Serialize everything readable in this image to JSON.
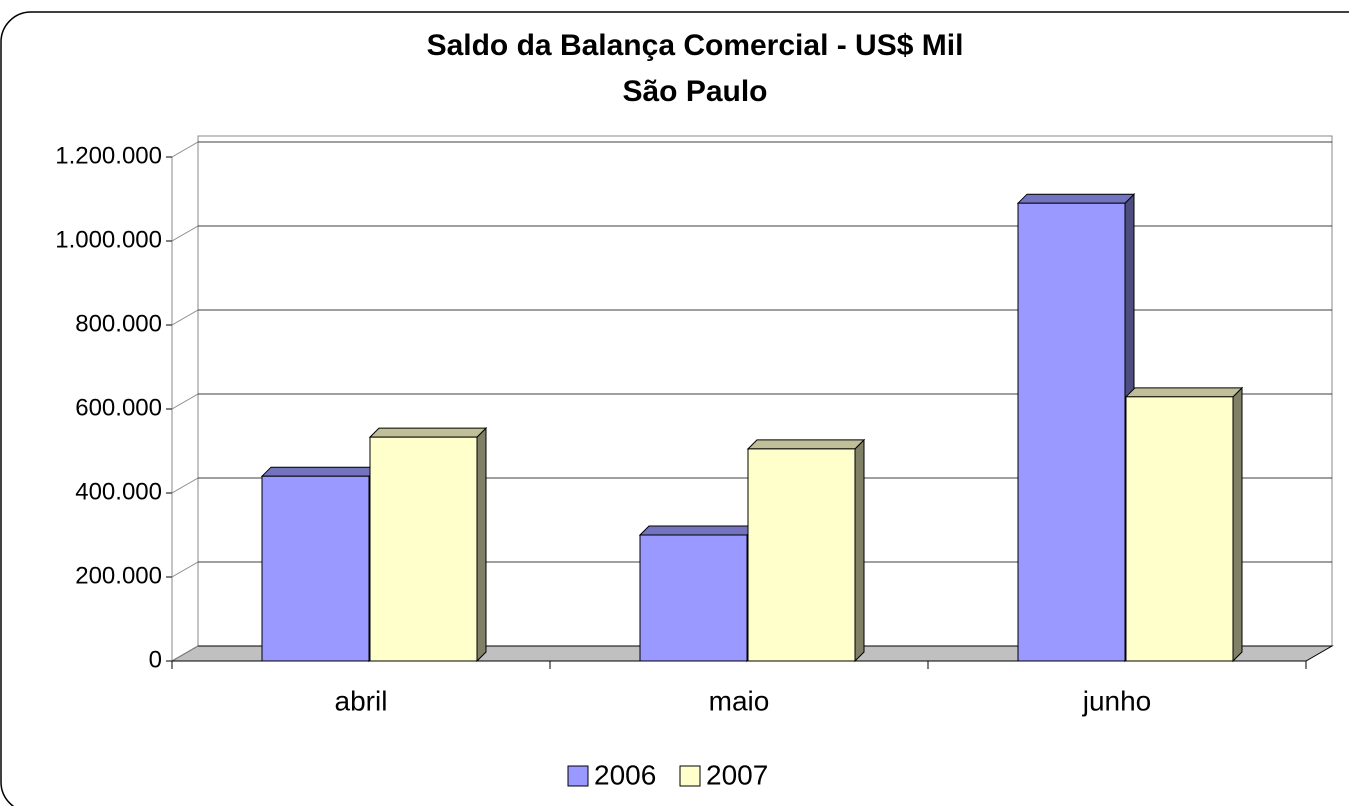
{
  "chart_data": {
    "type": "bar3d",
    "title": [
      "Saldo da Balança Comercial - US$ Mil",
      "São Paulo"
    ],
    "categories": [
      "abril",
      "maio",
      "junho"
    ],
    "series": [
      {
        "name": "2006",
        "color": "#9999ff",
        "values": [
          440000,
          300000,
          1090000
        ]
      },
      {
        "name": "2007",
        "color": "#ffffcc",
        "values": [
          533000,
          505000,
          629000
        ]
      }
    ],
    "ylim": [
      0,
      1200000
    ],
    "yticks": [
      0,
      {
        "value": 200000,
        "label": "200.000"
      },
      {
        "value": 400000,
        "label": "400.000"
      },
      {
        "value": 600000,
        "label": "600.000"
      },
      {
        "value": 800000,
        "label": "800.000"
      },
      {
        "value": 1000000,
        "label": "1.000.000"
      },
      {
        "value": 1200000,
        "label": "1.200.000"
      }
    ],
    "grid": true,
    "legend": "bottom"
  }
}
